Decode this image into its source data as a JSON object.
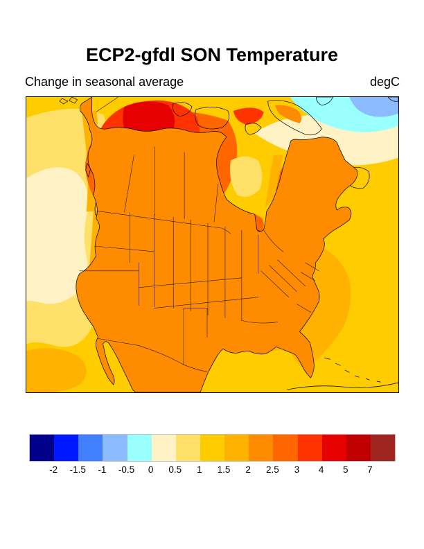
{
  "header": {
    "title": "ECP2-gfdl SON Temperature",
    "subtitle": "Change in seasonal average",
    "units": "degC"
  },
  "colorbar": {
    "tick_labels": [
      "-2",
      "-1.5",
      "-1",
      "-0.5",
      "0",
      "0.5",
      "1",
      "1.5",
      "2",
      "2.5",
      "3",
      "4",
      "5",
      "7"
    ],
    "cell_colors": [
      "#00008B",
      "#0018FF",
      "#4080FF",
      "#8CBAFF",
      "#99FFFF",
      "#FFF3C6",
      "#FFE169",
      "#FFCC00",
      "#FFB300",
      "#FF8C00",
      "#FF6600",
      "#FF3300",
      "#E60000",
      "#C00000",
      "#A02420"
    ]
  },
  "chart_data": {
    "type": "heatmap",
    "title": "ECP2-gfdl SON Temperature",
    "subtitle": "Change in seasonal average",
    "units": "degC",
    "legend_position": "bottom",
    "contour_levels": [
      -2,
      -1.5,
      -1,
      -0.5,
      0,
      0.5,
      1,
      1.5,
      2,
      2.5,
      3,
      4,
      5,
      7
    ],
    "region_values_degC": {
      "pacific_ocean_nearshore": "0 to 1",
      "pacific_ocean_offshore": "1 to 2",
      "western_us": "2 to 3",
      "central_and_eastern_us": "2 to 2.5",
      "gulf_of_mexico_and_caribbean": "1 to 1.5",
      "atlantic_nearshore": "1.5 to 2",
      "southern_canada": "2.5 to 4",
      "northwest_canada_core": "4 to 7",
      "hudson_bay": "1 to 1.5",
      "quebec_labrador": "2.5 to 4",
      "northeast_atlantic": "-1 to 0.5"
    }
  }
}
